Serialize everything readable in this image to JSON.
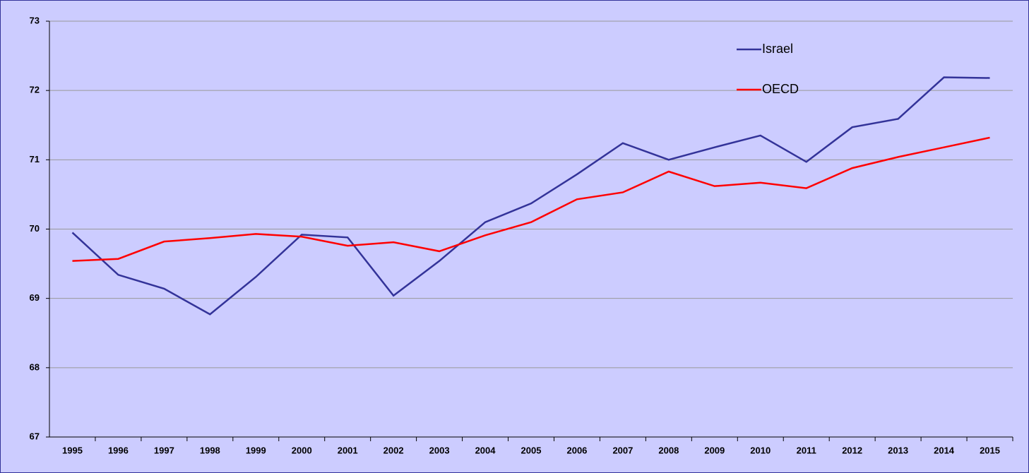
{
  "chart_data": {
    "type": "line",
    "categories": [
      "1995",
      "1996",
      "1997",
      "1998",
      "1999",
      "2000",
      "2001",
      "2002",
      "2003",
      "2004",
      "2005",
      "2006",
      "2007",
      "2008",
      "2009",
      "2010",
      "2011",
      "2012",
      "2013",
      "2014",
      "2015"
    ],
    "series": [
      {
        "name": "Israel",
        "color": "#333399",
        "values": [
          69.95,
          69.34,
          69.14,
          68.77,
          69.31,
          69.92,
          69.88,
          69.04,
          69.54,
          70.1,
          70.37,
          70.79,
          71.24,
          71.0,
          71.18,
          71.35,
          70.97,
          71.47,
          71.59,
          72.19,
          72.18
        ]
      },
      {
        "name": "OECD",
        "color": "#ff0000",
        "values": [
          69.54,
          69.57,
          69.82,
          69.87,
          69.93,
          69.89,
          69.76,
          69.81,
          69.68,
          69.91,
          70.1,
          70.43,
          70.53,
          70.83,
          70.62,
          70.67,
          70.59,
          70.88,
          71.04,
          71.18,
          71.32
        ]
      }
    ],
    "ylim": [
      67,
      73
    ],
    "yticks": [
      67,
      68,
      69,
      70,
      71,
      72,
      73
    ],
    "grid": true,
    "legend": "top-right"
  }
}
